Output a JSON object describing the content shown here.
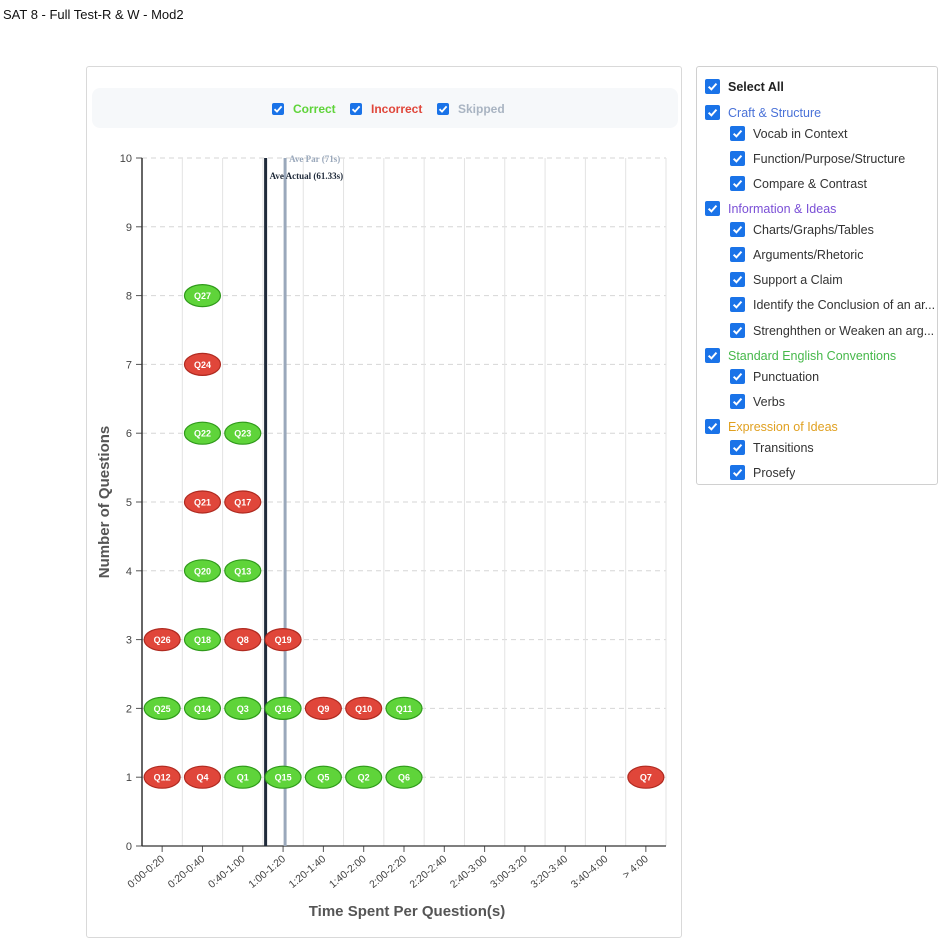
{
  "page_title": "SAT 8 - Full Test-R & W - Mod2",
  "legend": [
    {
      "label": "Correct",
      "color": "#5fd43a",
      "checked": true
    },
    {
      "label": "Incorrect",
      "color": "#e0463a",
      "checked": true
    },
    {
      "label": "Skipped",
      "color": "#a9b4c2",
      "checked": true
    }
  ],
  "filters": {
    "select_all": "Select All",
    "categories": [
      {
        "label": "Craft & Structure",
        "color": "#4a72d8",
        "items": [
          "Vocab in Context",
          "Function/Purpose/Structure",
          "Compare & Contrast"
        ]
      },
      {
        "label": "Information & Ideas",
        "color": "#7a4fd6",
        "items": [
          "Charts/Graphs/Tables",
          "Arguments/Rhetoric",
          "Support a Claim",
          "Identify the Conclusion of an ar...",
          "Strenghthen or Weaken an arg..."
        ]
      },
      {
        "label": "Standard English Conventions",
        "color": "#46b84a",
        "items": [
          "Punctuation",
          "Verbs"
        ]
      },
      {
        "label": "Expression of Ideas",
        "color": "#e0a020",
        "items": [
          "Transitions",
          "Prosefy"
        ]
      }
    ]
  },
  "chart_data": {
    "type": "scatter",
    "xlabel": "Time Spent Per Question(s)",
    "ylabel": "Number of Questions",
    "categories": [
      "0:00-0:20",
      "0:20-0:40",
      "0:40-1:00",
      "1:00-1:20",
      "1:20-1:40",
      "1:40-2:00",
      "2:00-2:20",
      "2:20-2:40",
      "2:40-3:00",
      "3:00-3:20",
      "3:20-3:40",
      "3:40-4:00",
      "> 4:00"
    ],
    "yticks": [
      "0",
      "1",
      "2",
      "3",
      "4",
      "5",
      "6",
      "7",
      "8",
      "9",
      "10"
    ],
    "ylim": [
      0,
      10
    ],
    "grid": true,
    "colors": {
      "correct": "#5fd43a",
      "incorrect": "#e0463a",
      "correct_border": "#2f9a1a",
      "incorrect_border": "#b02a20"
    },
    "lines": [
      {
        "label": "Ave Par (71s)",
        "seconds": 71,
        "color": "#9aa8bb"
      },
      {
        "label": "Ave Actual (61.33s)",
        "seconds": 61.33,
        "color": "#1f2a3a"
      }
    ],
    "points": [
      {
        "q": "Q12",
        "bin": 0,
        "y": 1,
        "status": "incorrect"
      },
      {
        "q": "Q25",
        "bin": 0,
        "y": 2,
        "status": "correct"
      },
      {
        "q": "Q26",
        "bin": 0,
        "y": 3,
        "status": "incorrect"
      },
      {
        "q": "Q4",
        "bin": 1,
        "y": 1,
        "status": "incorrect"
      },
      {
        "q": "Q14",
        "bin": 1,
        "y": 2,
        "status": "correct"
      },
      {
        "q": "Q18",
        "bin": 1,
        "y": 3,
        "status": "correct"
      },
      {
        "q": "Q20",
        "bin": 1,
        "y": 4,
        "status": "correct"
      },
      {
        "q": "Q21",
        "bin": 1,
        "y": 5,
        "status": "incorrect"
      },
      {
        "q": "Q22",
        "bin": 1,
        "y": 6,
        "status": "correct"
      },
      {
        "q": "Q24",
        "bin": 1,
        "y": 7,
        "status": "incorrect"
      },
      {
        "q": "Q27",
        "bin": 1,
        "y": 8,
        "status": "correct"
      },
      {
        "q": "Q1",
        "bin": 2,
        "y": 1,
        "status": "correct"
      },
      {
        "q": "Q3",
        "bin": 2,
        "y": 2,
        "status": "correct"
      },
      {
        "q": "Q8",
        "bin": 2,
        "y": 3,
        "status": "incorrect"
      },
      {
        "q": "Q13",
        "bin": 2,
        "y": 4,
        "status": "correct"
      },
      {
        "q": "Q17",
        "bin": 2,
        "y": 5,
        "status": "incorrect"
      },
      {
        "q": "Q23",
        "bin": 2,
        "y": 6,
        "status": "correct"
      },
      {
        "q": "Q15",
        "bin": 3,
        "y": 1,
        "status": "correct"
      },
      {
        "q": "Q16",
        "bin": 3,
        "y": 2,
        "status": "correct"
      },
      {
        "q": "Q19",
        "bin": 3,
        "y": 3,
        "status": "incorrect"
      },
      {
        "q": "Q5",
        "bin": 4,
        "y": 1,
        "status": "correct"
      },
      {
        "q": "Q9",
        "bin": 4,
        "y": 2,
        "status": "incorrect"
      },
      {
        "q": "Q2",
        "bin": 5,
        "y": 1,
        "status": "correct"
      },
      {
        "q": "Q10",
        "bin": 5,
        "y": 2,
        "status": "incorrect"
      },
      {
        "q": "Q6",
        "bin": 6,
        "y": 1,
        "status": "correct"
      },
      {
        "q": "Q11",
        "bin": 6,
        "y": 2,
        "status": "correct"
      },
      {
        "q": "Q7",
        "bin": 12,
        "y": 1,
        "status": "incorrect"
      }
    ]
  }
}
